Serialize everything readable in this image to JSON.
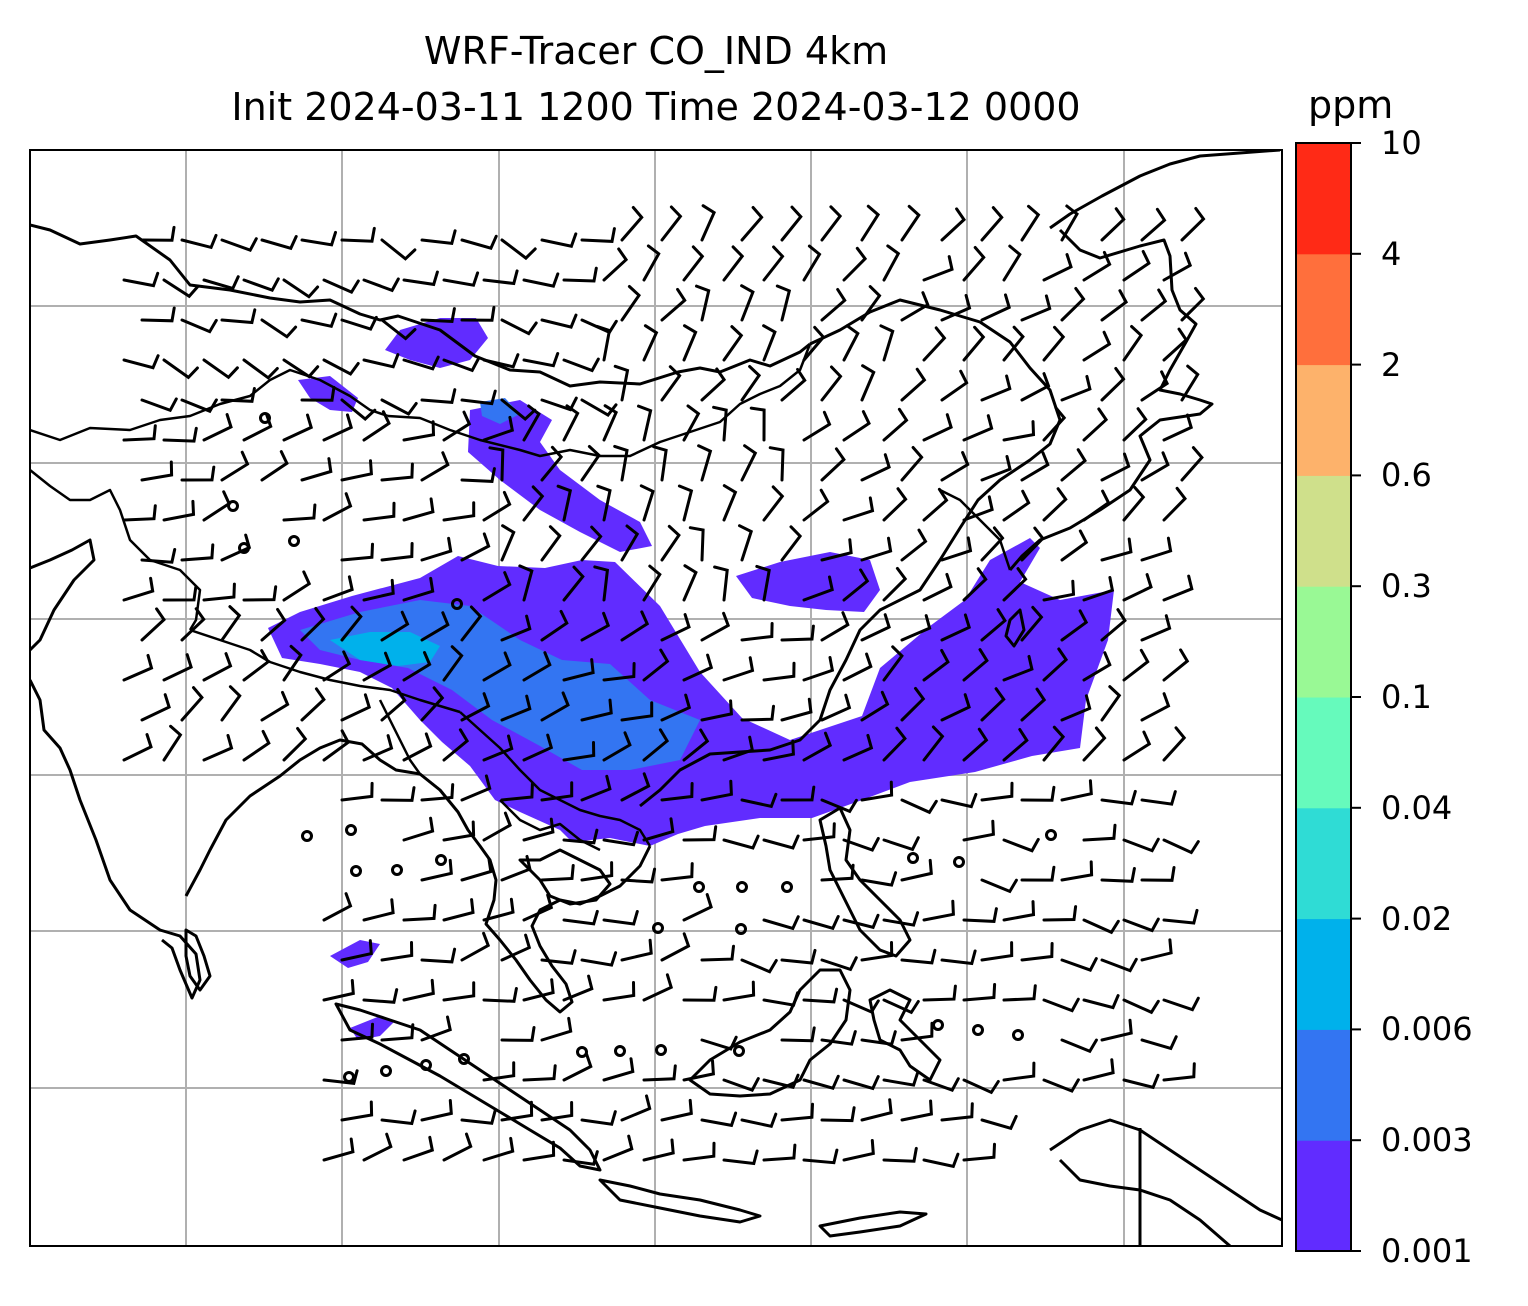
{
  "title": {
    "line1": "WRF-Tracer CO_IND 4km",
    "line2": "Init 2024-03-11 1200 Time 2024-03-12 0000"
  },
  "colorbar": {
    "unit": "ppm",
    "levels": [
      "0.001",
      "0.003",
      "0.006",
      "0.02",
      "0.04",
      "0.1",
      "0.3",
      "0.6",
      "2",
      "4",
      "10"
    ],
    "colors": [
      "#612cff",
      "#3375f2",
      "#00b1eb",
      "#2fdcd5",
      "#66fabc",
      "#99f995",
      "#cfe08b",
      "#fdb26b",
      "#ff6f3c",
      "#ff2a16"
    ]
  },
  "map": {
    "coastline_color": "#000000",
    "gridline_color": "#b0b0b0",
    "layers": [
      "coastlines",
      "country-borders",
      "gridlines",
      "co-concentration-fill",
      "wind-barbs"
    ]
  }
}
